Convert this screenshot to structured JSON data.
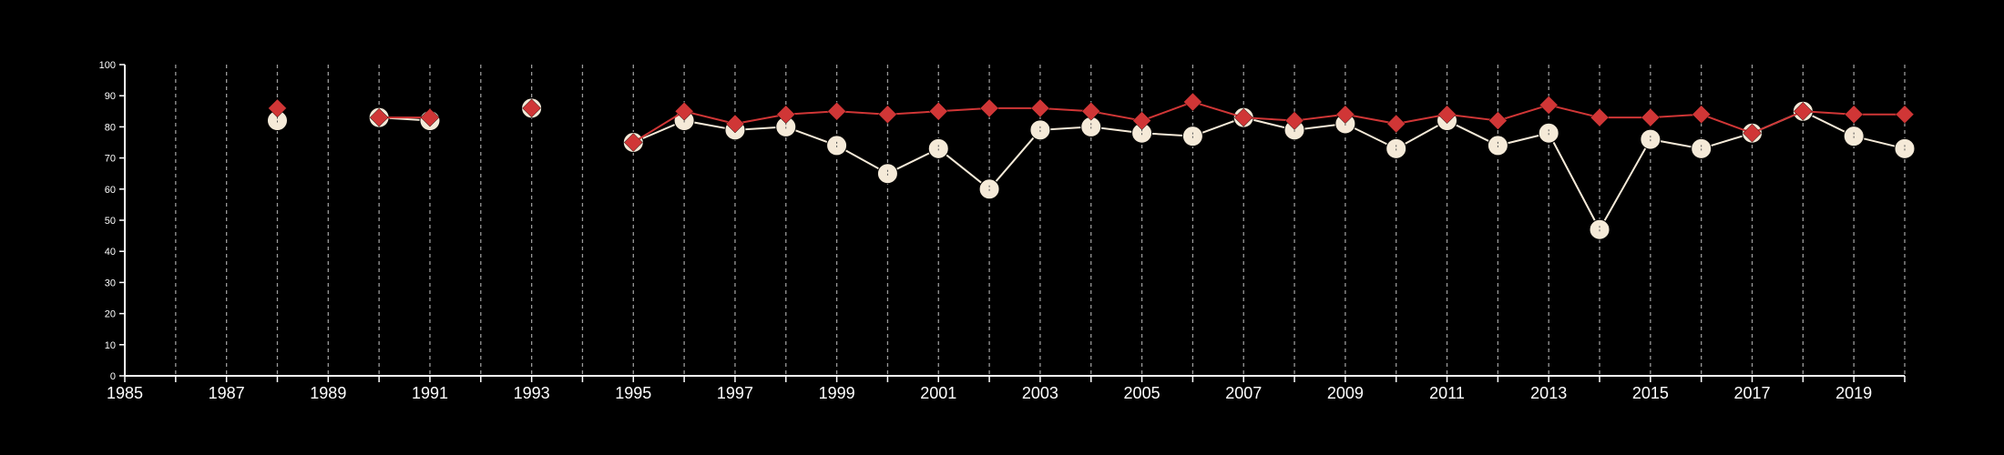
{
  "chart_data": {
    "type": "line",
    "title": "",
    "xlabel": "",
    "ylabel": "",
    "xlim": [
      1985,
      2020
    ],
    "ylim": [
      0,
      100
    ],
    "x_ticks": [
      1985,
      1986,
      1987,
      1988,
      1989,
      1990,
      1991,
      1992,
      1993,
      1994,
      1995,
      1996,
      1997,
      1998,
      1999,
      2000,
      2001,
      2002,
      2003,
      2004,
      2005,
      2006,
      2007,
      2008,
      2009,
      2010,
      2011,
      2012,
      2013,
      2014,
      2015,
      2016,
      2017,
      2018,
      2019,
      2020
    ],
    "x_tick_labels": [
      "1985",
      "",
      "1987",
      "",
      "1989",
      "",
      "1991",
      "",
      "1993",
      "",
      "1995",
      "",
      "1997",
      "",
      "1999",
      "",
      "2001",
      "",
      "2003",
      "",
      "2005",
      "",
      "2007",
      "",
      "2009",
      "",
      "2011",
      "",
      "2013",
      "",
      "2015",
      "",
      "2017",
      "",
      "2019",
      ""
    ],
    "y_ticks": [
      0,
      10,
      20,
      30,
      40,
      50,
      60,
      70,
      80,
      90,
      100
    ],
    "grid": "vertical dashed",
    "series": [
      {
        "name": "",
        "color": "#f5ead8",
        "marker": "circle",
        "points": [
          [
            1988,
            82
          ],
          [
            1990,
            83
          ],
          [
            1991,
            82
          ],
          [
            1993,
            86
          ],
          [
            1995,
            75
          ],
          [
            1996,
            82
          ],
          [
            1997,
            79
          ],
          [
            1998,
            80
          ],
          [
            1999,
            74
          ],
          [
            2000,
            65
          ],
          [
            2001,
            73
          ],
          [
            2002,
            60
          ],
          [
            2003,
            79
          ],
          [
            2004,
            80
          ],
          [
            2005,
            78
          ],
          [
            2006,
            77
          ],
          [
            2007,
            83
          ],
          [
            2008,
            79
          ],
          [
            2009,
            81
          ],
          [
            2010,
            73
          ],
          [
            2011,
            82
          ],
          [
            2012,
            74
          ],
          [
            2013,
            78
          ],
          [
            2014,
            47
          ],
          [
            2015,
            76
          ],
          [
            2016,
            73
          ],
          [
            2017,
            78
          ],
          [
            2018,
            85
          ],
          [
            2019,
            77
          ],
          [
            2020,
            73
          ]
        ]
      },
      {
        "name": "",
        "color": "#d03636",
        "marker": "diamond",
        "points": [
          [
            1988,
            86
          ],
          [
            1990,
            83
          ],
          [
            1991,
            83
          ],
          [
            1993,
            86
          ],
          [
            1995,
            75
          ],
          [
            1996,
            85
          ],
          [
            1997,
            81
          ],
          [
            1998,
            84
          ],
          [
            1999,
            85
          ],
          [
            2000,
            84
          ],
          [
            2001,
            85
          ],
          [
            2002,
            86
          ],
          [
            2003,
            86
          ],
          [
            2004,
            85
          ],
          [
            2005,
            82
          ],
          [
            2006,
            88
          ],
          [
            2007,
            83
          ],
          [
            2008,
            82
          ],
          [
            2009,
            84
          ],
          [
            2010,
            81
          ],
          [
            2011,
            84
          ],
          [
            2012,
            82
          ],
          [
            2013,
            87
          ],
          [
            2014,
            83
          ],
          [
            2015,
            83
          ],
          [
            2016,
            84
          ],
          [
            2017,
            78
          ],
          [
            2018,
            85
          ],
          [
            2019,
            84
          ],
          [
            2020,
            84
          ]
        ]
      }
    ]
  }
}
